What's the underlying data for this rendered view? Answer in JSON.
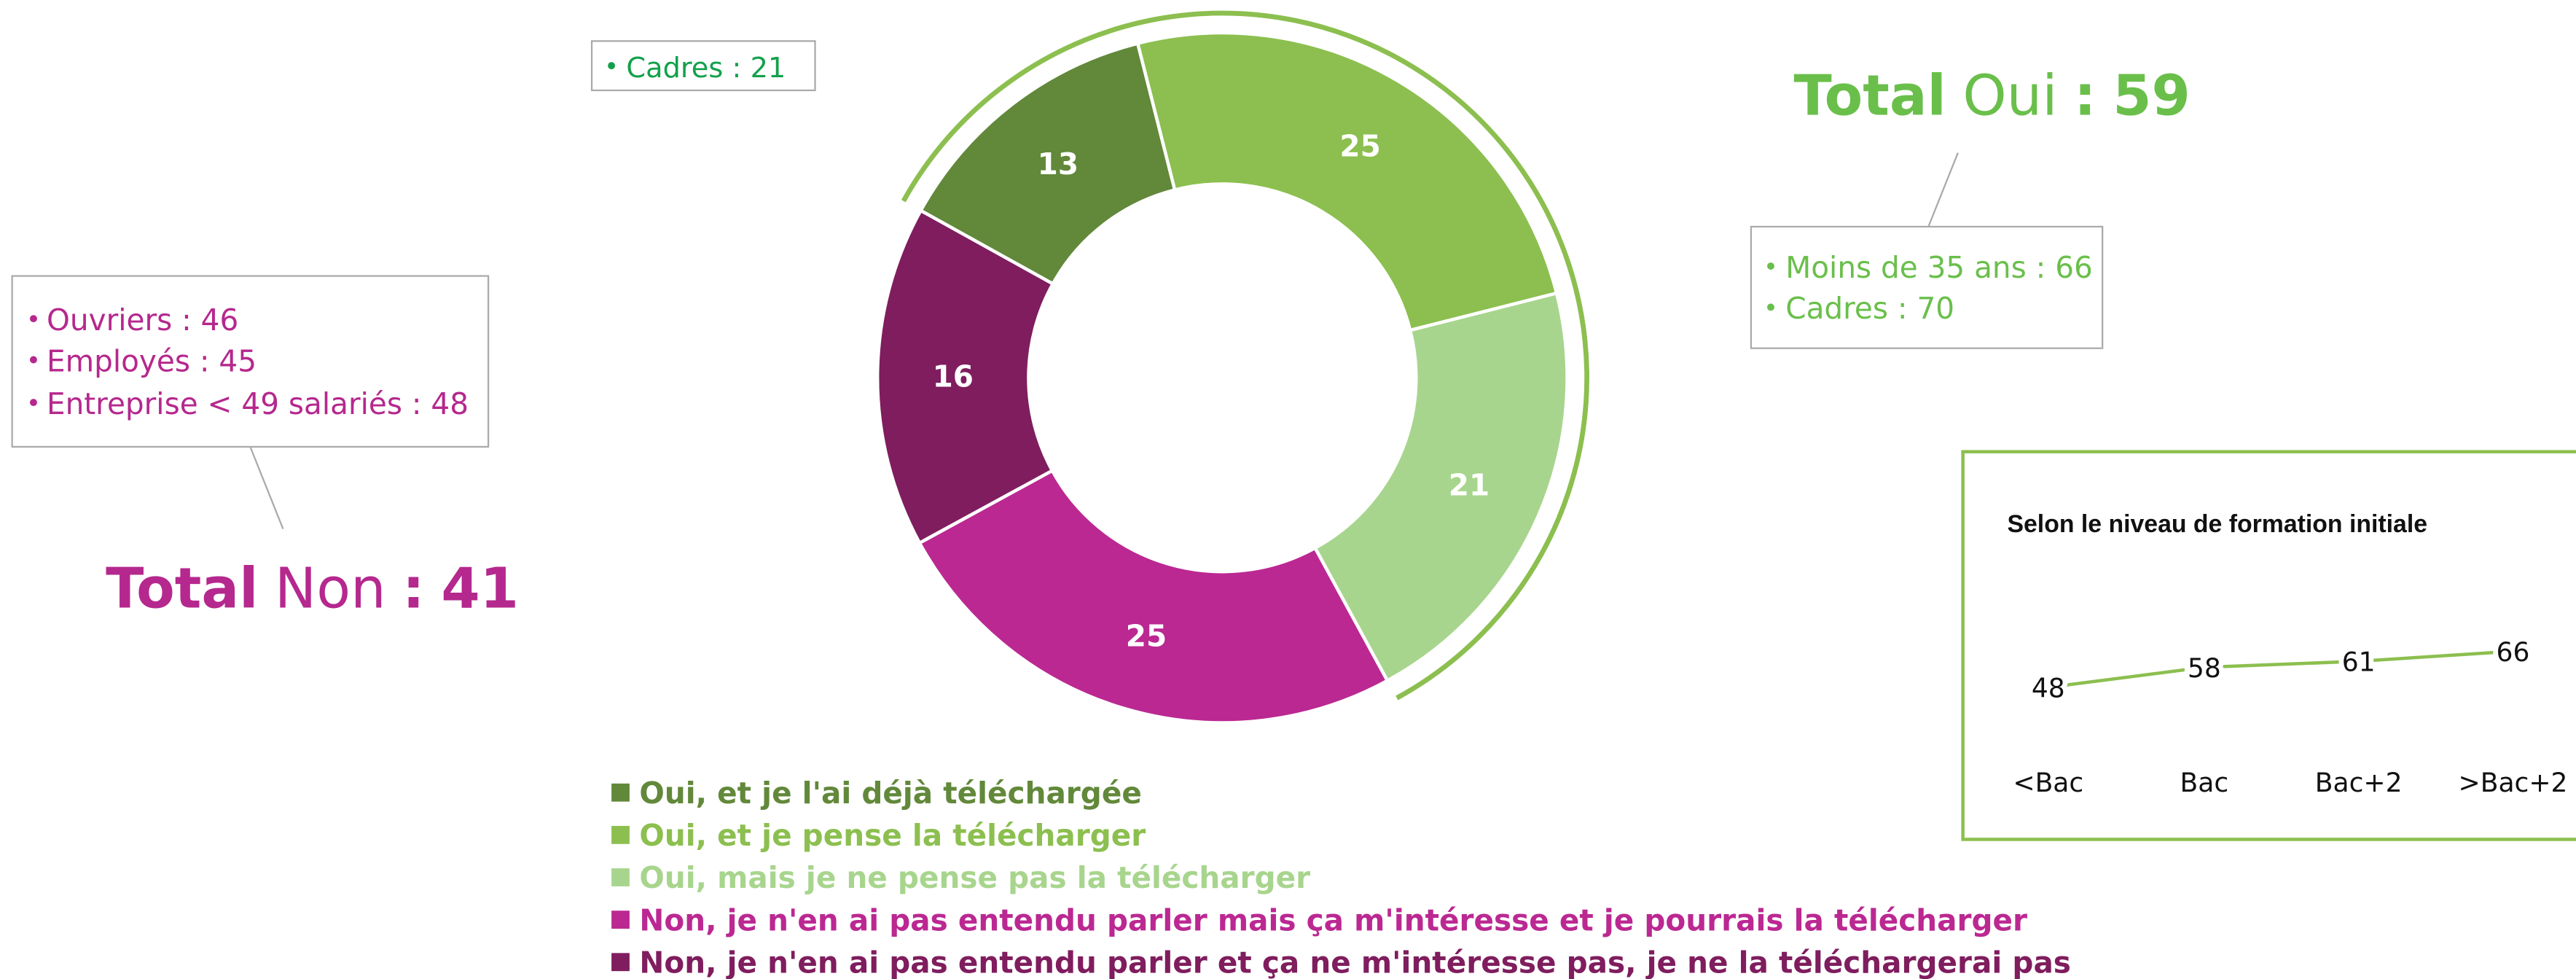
{
  "chart_data": [
    {
      "type": "donut",
      "categories": [
        "Oui, et je l'ai déjà téléchargée",
        "Oui, et je pense la télécharger",
        "Oui, mais je ne pense pas la télécharger",
        "Non, je n'en ai pas entendu parler mais ça m'intéresse et je pourrais la télécharger",
        "Non, je n'en ai pas entendu parler et ça ne m'intéresse pas, je ne la téléchargerai pas"
      ],
      "values": [
        13,
        25,
        21,
        25,
        16
      ],
      "colors": [
        "#62883a",
        "#8cbf4f",
        "#a8d58d",
        "#bb2892",
        "#7f1d5e"
      ]
    },
    {
      "type": "line",
      "title": "Selon le niveau de formation initiale",
      "categories": [
        "<Bac",
        "Bac",
        "Bac+2",
        ">Bac+2"
      ],
      "values": [
        48,
        58,
        61,
        66
      ],
      "color": "#8cbf4f"
    }
  ],
  "annotations": {
    "callout": [
      "Cadres : 21"
    ],
    "oui": {
      "label": "Total",
      "word": "Oui",
      "separator": ":",
      "value": 59,
      "details": [
        "Moins de 35 ans : 66",
        "Cadres : 70"
      ]
    },
    "non": {
      "label": "Total",
      "word": "Non",
      "separator": ":",
      "value": 41,
      "details": [
        "Ouvriers : 46",
        "Employés : 45",
        "Entreprise < 49 salariés  : 48"
      ]
    }
  }
}
